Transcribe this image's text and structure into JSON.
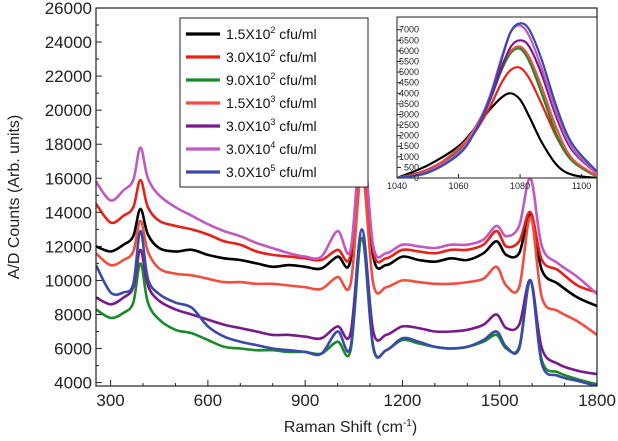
{
  "chart_data": {
    "type": "line",
    "main": {
      "xlabel": "Raman Shift (cm",
      "xlabel_sup": "-1",
      "xlabel_close": ")",
      "ylabel": "A/D Counts (Arb. units)",
      "xlim": [
        255,
        1800
      ],
      "ylim": [
        3800,
        26000
      ],
      "xticks": [
        300,
        600,
        900,
        1200,
        1500,
        1800
      ],
      "yticks": [
        4000,
        6000,
        8000,
        10000,
        12000,
        14000,
        16000,
        18000,
        20000,
        22000,
        24000,
        26000
      ],
      "legend_position": "top-center",
      "x": [
        255,
        300,
        340,
        370,
        392,
        415,
        450,
        500,
        550,
        600,
        650,
        700,
        750,
        800,
        850,
        900,
        950,
        1000,
        1040,
        1075,
        1110,
        1150,
        1200,
        1250,
        1300,
        1350,
        1400,
        1450,
        1490,
        1520,
        1560,
        1595,
        1630,
        1680,
        1740,
        1800
      ],
      "series": [
        {
          "name": "1.5X10",
          "exp": "2",
          "unit": " cfu/ml",
          "color": "#000000",
          "values": [
            12000,
            11700,
            12100,
            12600,
            14200,
            12700,
            11900,
            11700,
            11800,
            11500,
            11300,
            11200,
            11000,
            10800,
            10900,
            10800,
            10700,
            11400,
            11200,
            18200,
            11400,
            10900,
            11400,
            11200,
            11100,
            11300,
            11200,
            11600,
            12300,
            11500,
            11600,
            13900,
            10600,
            9800,
            9000,
            8500
          ]
        },
        {
          "name": "3.0X10",
          "exp": "2",
          "unit": " cfu/ml",
          "color": "#e8201a",
          "values": [
            14500,
            13400,
            13800,
            14300,
            15900,
            14300,
            13500,
            13200,
            13000,
            12700,
            12300,
            12100,
            11700,
            11500,
            11400,
            11300,
            11200,
            11800,
            11500,
            18000,
            11700,
            11300,
            11800,
            11700,
            11600,
            11800,
            11800,
            12100,
            12900,
            12000,
            12300,
            14000,
            11200,
            10600,
            9700,
            9300
          ]
        },
        {
          "name": "9.0X10",
          "exp": "2",
          "unit": " cfu/ml",
          "color": "#1a8a2a",
          "values": [
            8300,
            7800,
            8100,
            8700,
            11000,
            8700,
            7700,
            7100,
            6900,
            6500,
            6100,
            6000,
            5900,
            5900,
            5800,
            5800,
            5700,
            6400,
            5900,
            12500,
            6000,
            5900,
            6500,
            6300,
            6100,
            6000,
            6100,
            6400,
            6800,
            6000,
            6100,
            10000,
            5300,
            4600,
            4200,
            3900
          ]
        },
        {
          "name": "1.5X10",
          "exp": "3",
          "unit": " cfu/ml",
          "color": "#f04e3e",
          "values": [
            11600,
            10900,
            11200,
            11700,
            13500,
            11700,
            10700,
            10400,
            10300,
            10100,
            9900,
            9900,
            9800,
            9800,
            9700,
            9600,
            9500,
            10200,
            9800,
            16300,
            9800,
            9600,
            10000,
            9900,
            9800,
            9800,
            9900,
            10100,
            10800,
            9700,
            9600,
            13700,
            9000,
            8200,
            7600,
            6800
          ]
        },
        {
          "name": "3.0X10",
          "exp": "3",
          "unit": " cfu/ml",
          "color": "#7a1a8a",
          "values": [
            9000,
            8600,
            9000,
            9600,
            11800,
            9700,
            8800,
            8300,
            8000,
            7700,
            7400,
            7200,
            7000,
            6800,
            6800,
            6700,
            6600,
            7300,
            6900,
            13000,
            7000,
            6800,
            7300,
            7200,
            7000,
            7000,
            7100,
            7400,
            8000,
            7200,
            7400,
            10000,
            6000,
            5100,
            4700,
            4500
          ]
        },
        {
          "name": "3.0X10",
          "exp": "4",
          "unit": " cfu/ml",
          "color": "#c05ac0",
          "values": [
            15800,
            14700,
            15300,
            15900,
            17800,
            16000,
            15000,
            14300,
            13800,
            13300,
            12900,
            12600,
            12200,
            11900,
            11600,
            11400,
            11400,
            12900,
            11800,
            18500,
            12000,
            11600,
            12100,
            12000,
            11900,
            12100,
            12100,
            12400,
            13200,
            12600,
            13200,
            16000,
            12000,
            11000,
            10200,
            9200
          ]
        },
        {
          "name": "3.0X10",
          "exp": "5",
          "unit": " cfu/ml",
          "color": "#3a4aa8",
          "values": [
            10900,
            9300,
            9300,
            9800,
            12900,
            10100,
            9200,
            8700,
            8400,
            7300,
            6700,
            6400,
            6200,
            6000,
            5900,
            5800,
            5700,
            7000,
            6100,
            13000,
            6100,
            5900,
            6600,
            6400,
            6100,
            6000,
            6100,
            6500,
            7000,
            6100,
            6000,
            10000,
            5100,
            4400,
            4100,
            3800
          ]
        }
      ]
    },
    "inset": {
      "xlim": [
        1040,
        1105
      ],
      "ylim": [
        0,
        7600
      ],
      "xticks": [
        1040,
        1060,
        1080,
        1100
      ],
      "yticks": [
        0,
        500,
        1000,
        1500,
        2000,
        2500,
        3000,
        3500,
        4000,
        4500,
        5000,
        5500,
        6000,
        6500,
        7000
      ],
      "x": [
        1040,
        1050,
        1060,
        1065,
        1070,
        1074,
        1077,
        1080,
        1083,
        1087,
        1092,
        1097,
        1105
      ],
      "series": [
        {
          "color": "#000000",
          "values": [
            0,
            600,
            1500,
            2300,
            3200,
            3800,
            4000,
            3700,
            2900,
            1700,
            600,
            150,
            0
          ]
        },
        {
          "color": "#e8201a",
          "values": [
            0,
            400,
            1300,
            2100,
            3300,
            4500,
            5100,
            5200,
            4700,
            3500,
            1900,
            800,
            100
          ]
        },
        {
          "color": "#1a8a2a",
          "values": [
            0,
            350,
            1300,
            2200,
            3600,
            5100,
            5900,
            6100,
            5500,
            4000,
            2000,
            800,
            50
          ]
        },
        {
          "color": "#f04e3e",
          "values": [
            0,
            350,
            1400,
            2300,
            3700,
            5300,
            6000,
            6200,
            5700,
            4300,
            2300,
            900,
            100
          ]
        },
        {
          "color": "#7a1a8a",
          "values": [
            0,
            300,
            1200,
            2100,
            3600,
            5200,
            6200,
            6500,
            6200,
            4900,
            2800,
            1300,
            200
          ]
        },
        {
          "color": "#c05ac0",
          "values": [
            0,
            300,
            1200,
            2200,
            3800,
            5700,
            6900,
            7200,
            6700,
            5200,
            3000,
            1400,
            200
          ]
        },
        {
          "color": "#3a4aa8",
          "values": [
            0,
            250,
            1100,
            2100,
            3700,
            5600,
            6900,
            7300,
            7000,
            5600,
            3300,
            1600,
            300
          ]
        }
      ]
    }
  }
}
